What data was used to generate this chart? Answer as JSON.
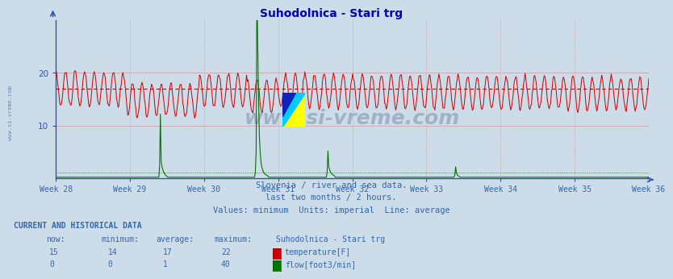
{
  "title": "Suhodolnica - Stari trg",
  "subtitle1": "Slovenia / river and sea data.",
  "subtitle2": "last two months / 2 hours.",
  "subtitle3": "Values: minimum  Units: imperial  Line: average",
  "background_color": "#ccdce8",
  "plot_bg_color": "#ccdce8",
  "weeks": [
    "Week 28",
    "Week 29",
    "Week 30",
    "Week 31",
    "Week 32",
    "Week 33",
    "Week 34",
    "Week 35",
    "Week 36"
  ],
  "n_points": 744,
  "temp_min": 14,
  "temp_avg": 17,
  "temp_max": 22,
  "temp_now": 15,
  "flow_min": 0,
  "flow_avg": 1,
  "flow_max": 40,
  "flow_now": 0,
  "temp_color": "#cc0000",
  "flow_color": "#007700",
  "avg_temp_color": "#990000",
  "avg_flow_color": "#005500",
  "grid_v_color": "#cc8888",
  "grid_h_color": "#cc9999",
  "axis_color": "#3355aa",
  "text_color": "#3366aa",
  "title_color": "#0000bb",
  "watermark_text": "www.si-vreme.com",
  "watermark_side": "www.si-vreme.com",
  "table_header": "CURRENT AND HISTORICAL DATA",
  "col_now": "now:",
  "col_min": "minimum:",
  "col_avg": "average:",
  "col_max": "maximum:",
  "col_name": "Suhodolnica - Stari trg",
  "temp_row": [
    "15",
    "14",
    "17",
    "22",
    "temperature[F]"
  ],
  "flow_row": [
    "0",
    "0",
    "1",
    "40",
    "flow[foot3/min]"
  ],
  "ylim_low": 0,
  "ylim_high": 30,
  "yticks": [
    10,
    20
  ],
  "flow_spike1_idx": 130,
  "flow_spike1_max": 12,
  "flow_spike2_idx": 252,
  "flow_spike2_max": 38,
  "flow_spike3_idx": 340,
  "flow_spike3_max": 5,
  "flow_spike4_idx": 500,
  "flow_spike4_max": 2
}
